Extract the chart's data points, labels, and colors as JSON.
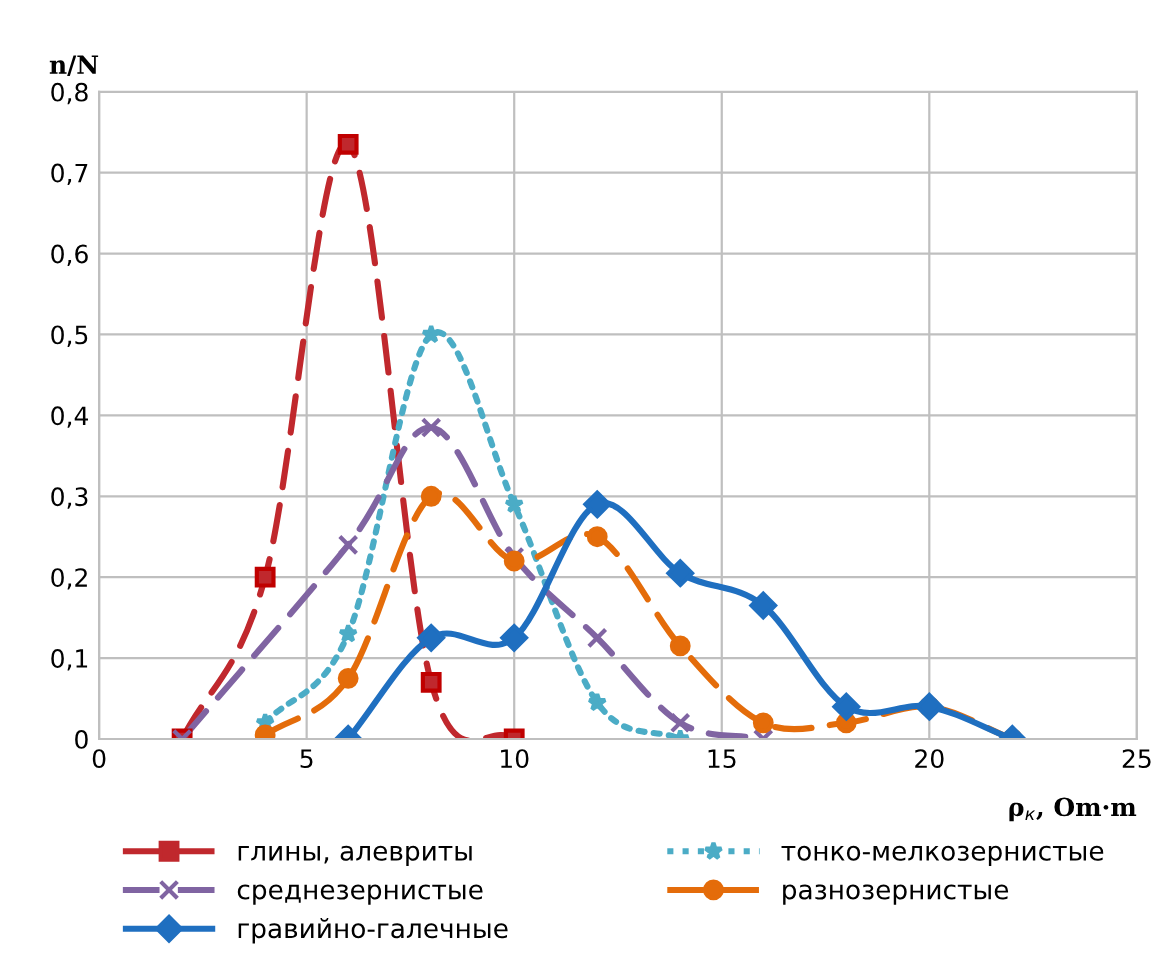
{
  "chart_data": {
    "type": "line",
    "xlabel": "ρ$_{к}$, Om·m",
    "ylabel": "n/N",
    "xlim": [
      0,
      25
    ],
    "xticks": [
      0,
      5,
      10,
      15,
      20,
      25
    ],
    "ylim": [
      0,
      0.8
    ],
    "yticks": [
      {
        "value": 0,
        "label": "0"
      },
      {
        "value": 0.1,
        "label": "0,1"
      },
      {
        "value": 0.2,
        "label": "0,2"
      },
      {
        "value": 0.3,
        "label": "0,3"
      },
      {
        "value": 0.4,
        "label": "0,4"
      },
      {
        "value": 0.5,
        "label": "0,5"
      },
      {
        "value": 0.6,
        "label": "0,6"
      },
      {
        "value": 0.7,
        "label": "0,7"
      },
      {
        "value": 0.8,
        "label": "0,8"
      }
    ],
    "grid": true,
    "legend": "bottom",
    "series": [
      {
        "name": "глины, алевриты",
        "color": "#c0282d",
        "marker": "square",
        "line_style": "dashed",
        "x": [
          2,
          4,
          6,
          8,
          10
        ],
        "values": [
          0,
          0.2,
          0.735,
          0.07,
          0
        ]
      },
      {
        "name": "тонко-мелкозернистые",
        "color": "#4bacc6",
        "marker": "star",
        "line_style": "dotted",
        "x": [
          4,
          6,
          8,
          10,
          12,
          14
        ],
        "values": [
          0.02,
          0.13,
          0.5,
          0.29,
          0.045,
          0
        ]
      },
      {
        "name": "среднезернистые",
        "color": "#8064a2",
        "marker": "cross",
        "line_style": "dashed",
        "x": [
          2,
          6,
          8,
          10,
          12,
          14,
          16
        ],
        "values": [
          0,
          0.24,
          0.385,
          0.225,
          0.125,
          0.02,
          0
        ]
      },
      {
        "name": "разнозернистые",
        "color": "#e46c0a",
        "marker": "circle",
        "line_style": "dashed",
        "x": [
          4,
          6,
          8,
          10,
          12,
          14,
          16,
          18,
          20,
          22
        ],
        "values": [
          0.005,
          0.075,
          0.3,
          0.22,
          0.25,
          0.115,
          0.02,
          0.02,
          0.04,
          0
        ]
      },
      {
        "name": "гравийно-галечные",
        "color": "#1f6fc0",
        "marker": "diamond",
        "line_style": "solid",
        "x": [
          6,
          8,
          10,
          12,
          14,
          16,
          18,
          20,
          22
        ],
        "values": [
          0,
          0.125,
          0.125,
          0.29,
          0.205,
          0.165,
          0.04,
          0.04,
          0
        ]
      }
    ]
  }
}
